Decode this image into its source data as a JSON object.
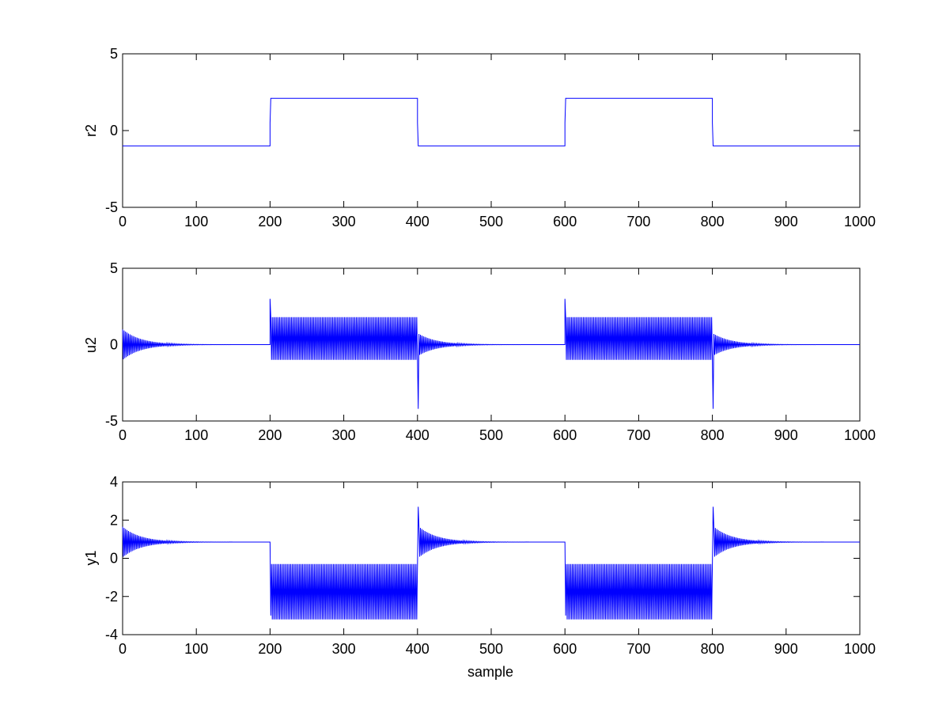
{
  "figure": {
    "background": "#ffffff",
    "line_color": "#0000ff",
    "axis_color": "#000000"
  },
  "chart_data": [
    {
      "type": "line",
      "ylabel": "r2",
      "xlabel": "",
      "xlim": [
        0,
        1000
      ],
      "ylim": [
        -5,
        5
      ],
      "xticks": [
        0,
        100,
        200,
        300,
        400,
        500,
        600,
        700,
        800,
        900,
        1000
      ],
      "xtick_labels": [
        "0",
        "100",
        "200",
        "300",
        "400",
        "500",
        "600",
        "700",
        "800",
        "900",
        "1000"
      ],
      "yticks": [
        -5,
        0,
        5
      ],
      "ytick_labels": [
        "-5",
        "0",
        "5"
      ],
      "grid": false,
      "series": [
        {
          "x": [
            0,
            199,
            200,
            200,
            201,
            399,
            400,
            400,
            401,
            599,
            600,
            600,
            601,
            799,
            800,
            800,
            801,
            1000
          ],
          "y": [
            -1,
            -1,
            -1,
            0.5,
            2.1,
            2.1,
            2.1,
            0.5,
            -1,
            -1,
            -1,
            0.5,
            2.1,
            2.1,
            2.1,
            0.5,
            -1,
            -1
          ]
        }
      ]
    },
    {
      "type": "line",
      "ylabel": "u2",
      "xlabel": "",
      "xlim": [
        0,
        1000
      ],
      "ylim": [
        -5,
        5
      ],
      "xticks": [
        0,
        100,
        200,
        300,
        400,
        500,
        600,
        700,
        800,
        900,
        1000
      ],
      "xtick_labels": [
        "0",
        "100",
        "200",
        "300",
        "400",
        "500",
        "600",
        "700",
        "800",
        "900",
        "1000"
      ],
      "yticks": [
        -5,
        0,
        5
      ],
      "ytick_labels": [
        "-5",
        "0",
        "5"
      ],
      "grid": false,
      "series": [
        {
          "segments": [
            {
              "kind": "decay",
              "x_start": 0,
              "x_end": 200,
              "mean": 0,
              "amp0": 1.0,
              "tau": 25
            },
            {
              "kind": "spike",
              "x": 200,
              "y": 3.0
            },
            {
              "kind": "sustained",
              "x_start": 201,
              "x_end": 400,
              "low": -1.0,
              "high": 1.8
            },
            {
              "kind": "spike",
              "x": 401,
              "y": -4.2
            },
            {
              "kind": "decay",
              "x_start": 402,
              "x_end": 600,
              "mean": 0,
              "amp0": 0.7,
              "tau": 25
            },
            {
              "kind": "spike",
              "x": 600,
              "y": 3.0
            },
            {
              "kind": "sustained",
              "x_start": 601,
              "x_end": 800,
              "low": -1.0,
              "high": 1.8
            },
            {
              "kind": "spike",
              "x": 801,
              "y": -4.2
            },
            {
              "kind": "decay",
              "x_start": 802,
              "x_end": 1000,
              "mean": 0,
              "amp0": 0.7,
              "tau": 25
            }
          ]
        }
      ]
    },
    {
      "type": "line",
      "ylabel": "y1",
      "xlabel": "sample",
      "xlim": [
        0,
        1000
      ],
      "ylim": [
        -4,
        4
      ],
      "xticks": [
        0,
        100,
        200,
        300,
        400,
        500,
        600,
        700,
        800,
        900,
        1000
      ],
      "xtick_labels": [
        "0",
        "100",
        "200",
        "300",
        "400",
        "500",
        "600",
        "700",
        "800",
        "900",
        "1000"
      ],
      "yticks": [
        -4,
        -2,
        0,
        2,
        4
      ],
      "ytick_labels": [
        "-4",
        "-2",
        "0",
        "2",
        "4"
      ],
      "grid": false,
      "series": [
        {
          "segments": [
            {
              "kind": "decay",
              "x_start": 0,
              "x_end": 200,
              "mean": 0.85,
              "amp0": 0.8,
              "tau": 25
            },
            {
              "kind": "spike",
              "x": 201,
              "y": -3.0
            },
            {
              "kind": "sustained",
              "x_start": 202,
              "x_end": 400,
              "low": -3.2,
              "high": -0.3
            },
            {
              "kind": "spike",
              "x": 401,
              "y": 2.7
            },
            {
              "kind": "decay",
              "x_start": 402,
              "x_end": 600,
              "mean": 0.85,
              "amp0": 0.8,
              "tau": 25
            },
            {
              "kind": "spike",
              "x": 601,
              "y": -3.0
            },
            {
              "kind": "sustained",
              "x_start": 602,
              "x_end": 800,
              "low": -3.2,
              "high": -0.3
            },
            {
              "kind": "spike",
              "x": 801,
              "y": 2.7
            },
            {
              "kind": "decay",
              "x_start": 802,
              "x_end": 1000,
              "mean": 0.85,
              "amp0": 0.8,
              "tau": 25
            }
          ]
        }
      ]
    }
  ]
}
